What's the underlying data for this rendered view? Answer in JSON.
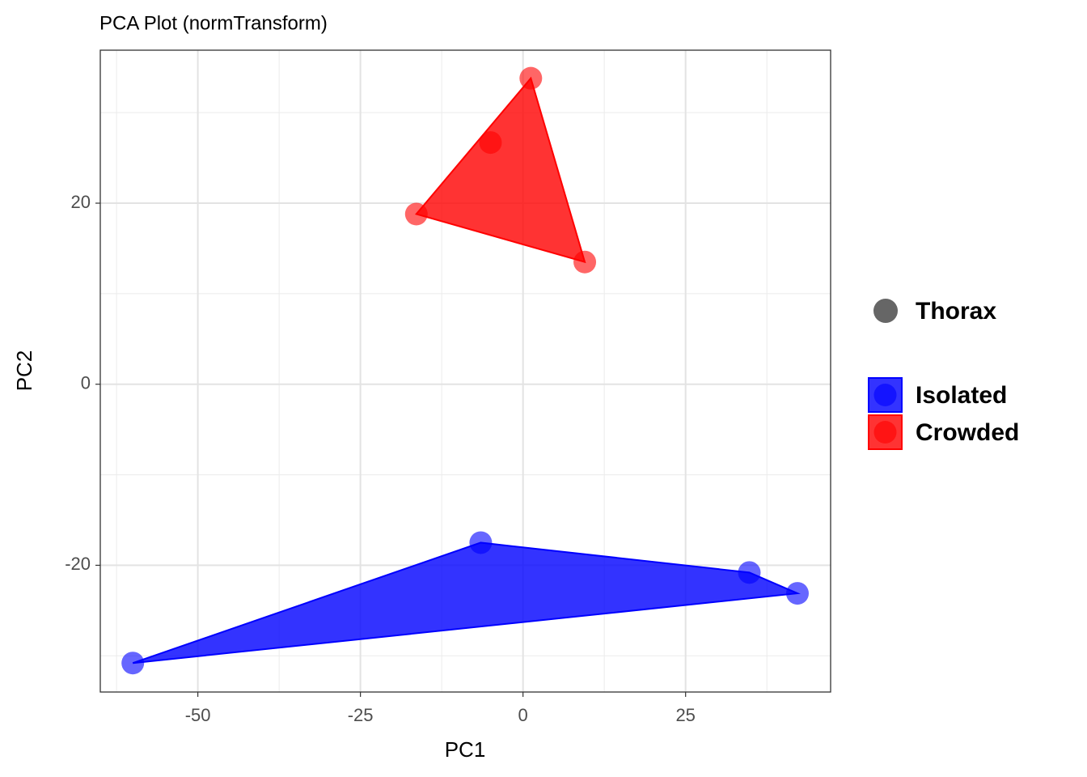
{
  "chart_data": {
    "type": "scatter",
    "title": "PCA Plot (normTransform)",
    "x_label": "PC1",
    "y_label": "PC2",
    "xlim": [
      -65,
      47.3
    ],
    "ylim": [
      -34,
      36.9
    ],
    "xticks": [
      -50,
      -25,
      0,
      25
    ],
    "yticks": [
      -20,
      0,
      20
    ],
    "grid": true,
    "hulls": true,
    "shape_legend": "Thorax",
    "series": [
      {
        "name": "Isolated",
        "color": "#0000ff",
        "x": [
          -6.5,
          34.8,
          42.2,
          -60.0
        ],
        "y": [
          -17.5,
          -20.8,
          -23.1,
          -30.8
        ]
      },
      {
        "name": "Crowded",
        "color": "#ff0000",
        "x": [
          1.2,
          -5.0,
          -16.4,
          9.5
        ],
        "y": [
          33.8,
          26.7,
          18.8,
          13.5
        ]
      }
    ]
  }
}
